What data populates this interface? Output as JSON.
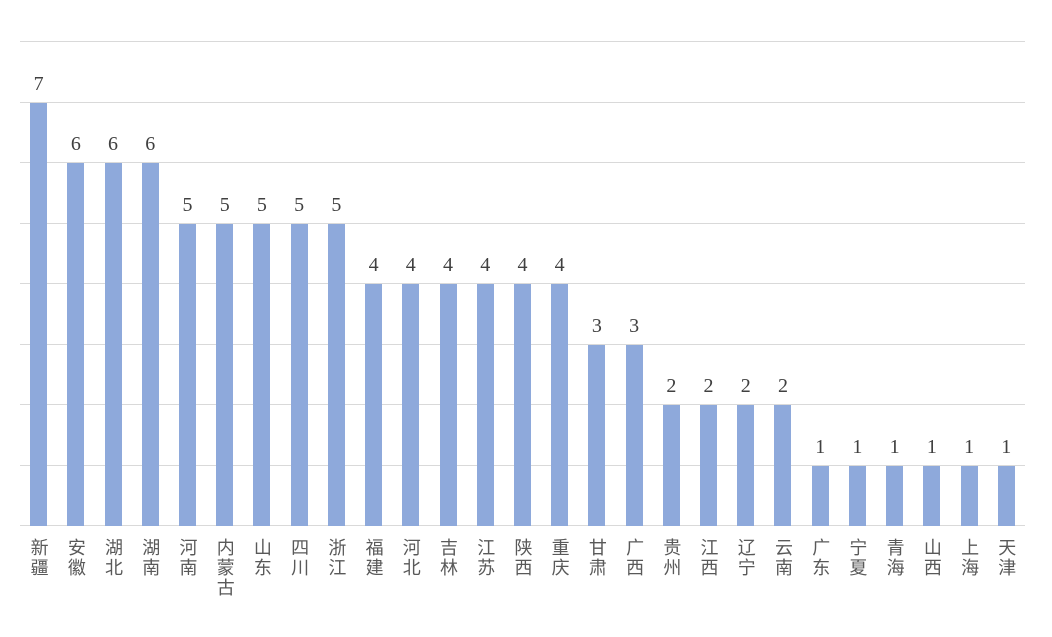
{
  "chart_data": {
    "type": "bar",
    "title": "",
    "xlabel": "",
    "ylabel": "",
    "categories": [
      "新疆",
      "安徽",
      "湖北",
      "湖南",
      "河南",
      "内蒙古",
      "山东",
      "四川",
      "浙江",
      "福建",
      "河北",
      "吉林",
      "江苏",
      "陕西",
      "重庆",
      "甘肃",
      "广西",
      "贵州",
      "江西",
      "辽宁",
      "云南",
      "广东",
      "宁夏",
      "青海",
      "山西",
      "上海",
      "天津"
    ],
    "values": [
      7,
      6,
      6,
      6,
      5,
      5,
      5,
      5,
      5,
      4,
      4,
      4,
      4,
      4,
      4,
      3,
      3,
      2,
      2,
      2,
      2,
      1,
      1,
      1,
      1,
      1,
      1
    ],
    "ylim": [
      0,
      8
    ],
    "gridline_step": 1,
    "grid": "horizontal",
    "legend": "none",
    "data_labels": true,
    "colors": {
      "bar_fill": "#8EA9DB",
      "gridline": "#D9D9D9",
      "axis_line": "#D9D9D9",
      "value_label": "#404040",
      "category_label": "#595959",
      "background": "#FFFFFF"
    }
  }
}
